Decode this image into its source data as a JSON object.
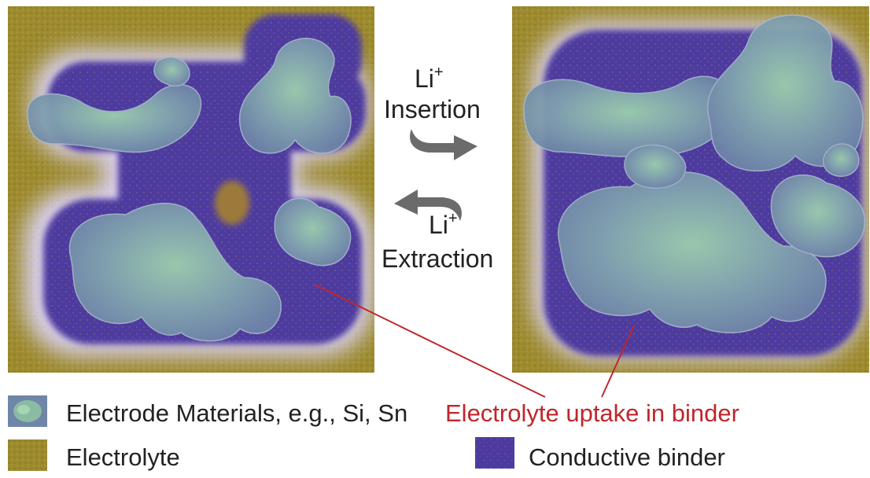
{
  "insertion": {
    "ion": "Li",
    "charge": "+",
    "label": "Insertion"
  },
  "extraction": {
    "ion": "Li",
    "charge": "+",
    "label": "Extraction"
  },
  "legend": {
    "electrode": "Electrode Materials, e.g., Si, Sn",
    "uptake": "Electrolyte uptake in binder",
    "electrolyte": "Electrolyte",
    "binder": "Conductive binder"
  },
  "colors": {
    "electrolyte": "#9c8a2e",
    "binder": "#4d3aa0",
    "particle": "#7d9aa6",
    "particle_core": "#8fc4a2",
    "annotation": "#c0262b",
    "arrow": "#6b6b6b"
  }
}
